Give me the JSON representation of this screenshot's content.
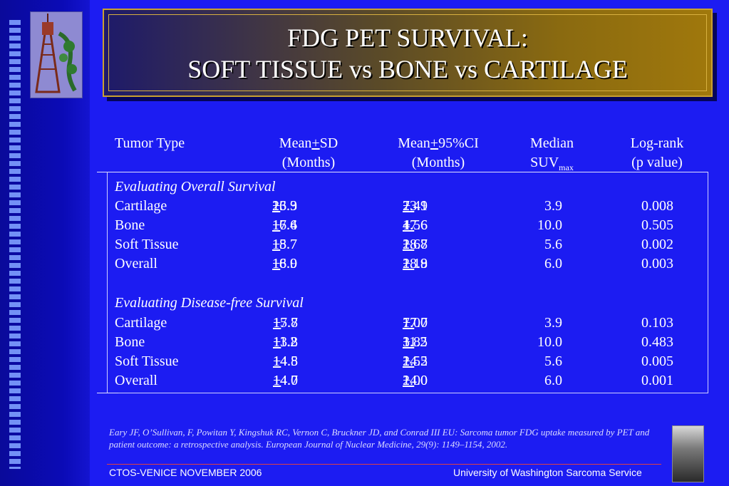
{
  "title": {
    "line1": "FDG PET SURVIVAL:",
    "line2": "SOFT TISSUE vs BONE vs CARTILAGE"
  },
  "table": {
    "headers": {
      "tumor_type": "Tumor Type",
      "mean_sd_1": "Mean",
      "mean_sd_pm": "+",
      "mean_sd_2": "SD",
      "mean_sd_units": "(Months)",
      "mean_ci_1": "Mean",
      "mean_ci_pm": "+",
      "mean_ci_2": "95%CI",
      "mean_ci_units": "(Months)",
      "median_1": "Median",
      "median_2": "SUV",
      "median_sub": "max",
      "logrank_1": "Log-rank",
      "logrank_2": "(p value)"
    },
    "sections": [
      {
        "label": "Evaluating Overall Survival",
        "rows": [
          {
            "type": "Cartilage",
            "sd_mean": "23.9 ",
            "sd_pm": "+",
            "sd_val": "16.3",
            "ci_mean": "23.9 ",
            "ci_pm": "+ ",
            "ci_val": "7.41",
            "suv": "3.9",
            "p": "0.008"
          },
          {
            "type": "Bone",
            "sd_mean": "17.6 ",
            "sd_pm": "+",
            "sd_val": "16.4",
            "ci_mean": "17.6 ",
            "ci_pm": "+ ",
            "ci_val": "4.56",
            "suv": "10.0",
            "p": "0.505"
          },
          {
            "type": "Soft Tissue",
            "sd_mean": "18.7 ",
            "sd_pm": "+",
            "sd_val": "15.7",
            "ci_mean": "18.7 ",
            "ci_pm": "+ ",
            "ci_val": "2.68",
            "suv": "5.6",
            "p": "0.002"
          },
          {
            "type": "Overall",
            "sd_mean": "18.9 ",
            "sd_pm": "+",
            "sd_val": "16.0",
            "ci_mean": "18.9 ",
            "ci_pm": "+ ",
            "ci_val": "2.18",
            "suv": "6.0",
            "p": "0.003"
          }
        ]
      },
      {
        "label": "Evaluating Disease-free Survival",
        "rows": [
          {
            "type": "Cartilage",
            "sd_mean": "17.7 ",
            "sd_pm": "+",
            "sd_val": "15.8",
            "ci_mean": "17.7 ",
            "ci_pm": "+ ",
            "ci_val": "7.00",
            "suv": "3.9",
            "p": "0.103"
          },
          {
            "type": "Bone",
            "sd_mean": "11.2 ",
            "sd_pm": "+",
            "sd_val": "13.8",
            "ci_mean": "11.2 ",
            "ci_pm": "+ ",
            "ci_val": "3.85",
            "suv": "10.0",
            "p": "0.483"
          },
          {
            "type": "Soft Tissue",
            "sd_mean": "14.5 ",
            "sd_pm": "+",
            "sd_val": "14.8",
            "ci_mean": "14.5 ",
            "ci_pm": "+ ",
            "ci_val": "2.52",
            "suv": "5.6",
            "p": "0.005"
          },
          {
            "type": "Overall",
            "sd_mean": "14.0 ",
            "sd_pm": "+",
            "sd_val": "14.7",
            "ci_mean": "14.0 ",
            "ci_pm": "+ ",
            "ci_val": "2.00",
            "suv": "6.0",
            "p": "0.001"
          }
        ]
      }
    ]
  },
  "citation": "Eary JF, O’Sullivan, F, Powitan Y, Kingshuk RC, Vernon C, Bruckner JD, and Conrad III EU:  Sarcoma tumor FDG uptake measured by PET and patient outcome: a retrospective analysis.  European Journal of Nuclear Medicine, 29(9): 1149–1154, 2002.",
  "footer": {
    "left": "CTOS-VENICE  NOVEMBER 2006",
    "right": "University  of Washington Sarcoma Service"
  },
  "colors": {
    "background": "#1c1cf2",
    "title_gold": "#a0780c",
    "footer_line": "#e04040"
  }
}
